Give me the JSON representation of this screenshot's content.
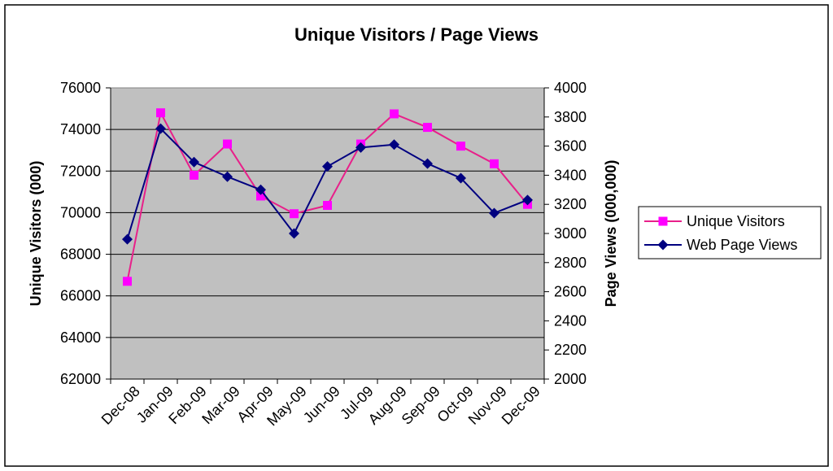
{
  "chart_data": {
    "type": "line",
    "title": "Unique Visitors / Page Views",
    "categories": [
      "Dec-08",
      "Jan-09",
      "Feb-09",
      "Mar-09",
      "Apr-09",
      "May-09",
      "Jun-09",
      "Jul-09",
      "Aug-09",
      "Sep-09",
      "Oct-09",
      "Nov-09",
      "Dec-09"
    ],
    "y_left": {
      "label": "Unique Visitors (000)",
      "min": 62000,
      "max": 76000,
      "step": 2000
    },
    "y_right": {
      "label": "Page Views (000,000)",
      "min": 2000,
      "max": 4000,
      "step": 200
    },
    "grid": true,
    "legend_position": "right",
    "plot_bg": "#c0c0c0",
    "series": [
      {
        "name": "Unique Visitors",
        "axis": "left",
        "color": "#ff00ff",
        "line_color": "#e8208a",
        "marker": "square",
        "values": [
          66700,
          74800,
          71800,
          73300,
          70800,
          69950,
          70350,
          73300,
          74750,
          74100,
          73200,
          72350,
          70400
        ]
      },
      {
        "name": "Web Page Views",
        "axis": "right",
        "color": "#000080",
        "marker": "diamond",
        "values": [
          2960,
          3720,
          3490,
          3390,
          3300,
          3000,
          3460,
          3590,
          3610,
          3480,
          3380,
          3140,
          3230
        ]
      }
    ]
  }
}
